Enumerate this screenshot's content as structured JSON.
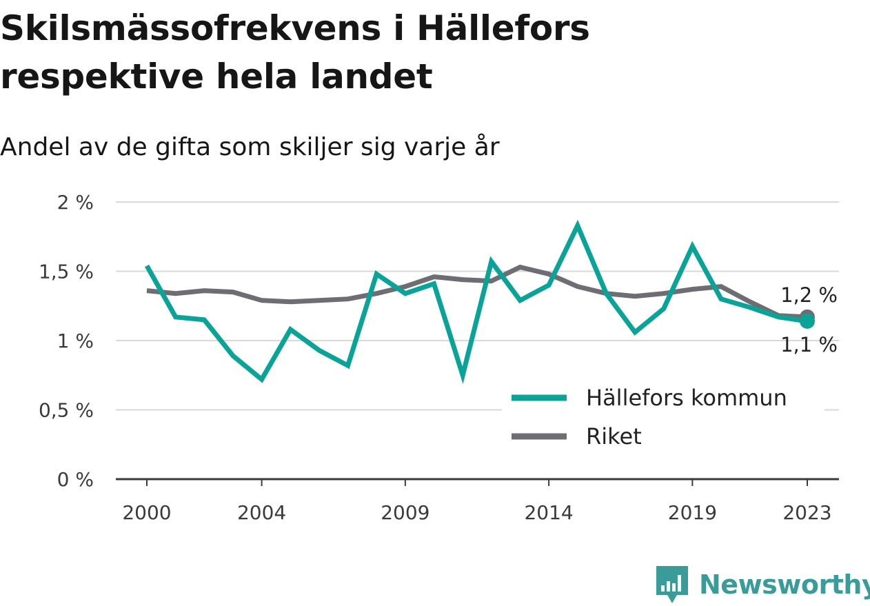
{
  "title": "Skilsmässofrekvens i Hällefors respektive hela landet",
  "subtitle": "Andel av de gifta som skiljer sig varje år",
  "brand": {
    "name": "Newsworthy",
    "icon": "bar-chart-speech-bubble-icon"
  },
  "colors": {
    "hallefors": "#0aa397",
    "riket": "#6e6d73",
    "grid": "#d9d9d9",
    "axis": "#3a3a3a",
    "brand": "#3a9c98"
  },
  "chart_data": {
    "type": "line",
    "x": [
      2000,
      2001,
      2002,
      2003,
      2004,
      2005,
      2006,
      2007,
      2008,
      2009,
      2010,
      2011,
      2012,
      2013,
      2014,
      2015,
      2016,
      2017,
      2018,
      2019,
      2020,
      2021,
      2022,
      2023
    ],
    "x_ticks": [
      "2000",
      "2004",
      "2009",
      "2014",
      "2019",
      "2023"
    ],
    "x_tick_values": [
      2000,
      2004,
      2009,
      2014,
      2019,
      2023
    ],
    "y_ticks": [
      "0 %",
      "0,5 %",
      "1 %",
      "1,5 %",
      "2 %"
    ],
    "y_tick_values": [
      0,
      0.5,
      1,
      1.5,
      2
    ],
    "ylim": [
      0,
      2
    ],
    "xlim": [
      2000,
      2023
    ],
    "grid": true,
    "legend_position": "bottom-right",
    "series": [
      {
        "name": "Hällefors kommun",
        "key": "hallefors",
        "values": [
          1.54,
          1.17,
          1.15,
          0.89,
          0.72,
          1.08,
          0.93,
          0.82,
          1.48,
          1.34,
          1.41,
          0.75,
          1.57,
          1.29,
          1.4,
          1.83,
          1.34,
          1.06,
          1.23,
          1.68,
          1.3,
          1.24,
          1.17,
          1.14
        ],
        "end_label": "1,1 %"
      },
      {
        "name": "Riket",
        "key": "riket",
        "values": [
          1.36,
          1.34,
          1.36,
          1.35,
          1.29,
          1.28,
          1.29,
          1.3,
          1.34,
          1.39,
          1.46,
          1.44,
          1.43,
          1.53,
          1.48,
          1.39,
          1.34,
          1.32,
          1.34,
          1.37,
          1.39,
          1.28,
          1.18,
          1.17
        ],
        "end_label": "1,2 %"
      }
    ]
  }
}
